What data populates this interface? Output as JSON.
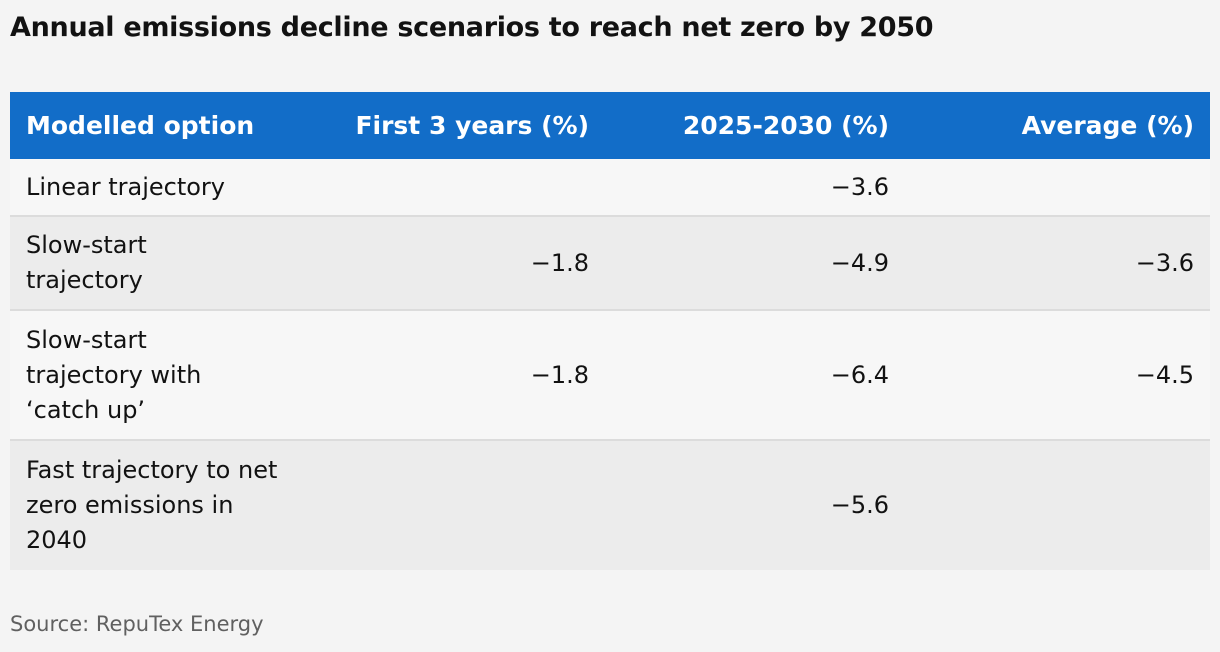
{
  "title": "Annual emissions decline scenarios to reach net zero by 2050",
  "source": "Source: RepuTex Energy",
  "chart_data": {
    "type": "table",
    "columns": [
      "Modelled option",
      "First 3 years (%)",
      "2025-2030 (%)",
      "Average (%)"
    ],
    "rows": [
      {
        "option": "Linear trajectory",
        "first3": "",
        "y2025_2030": "−3.6",
        "average": ""
      },
      {
        "option": "Slow-start trajectory",
        "first3": "−1.8",
        "y2025_2030": "−4.9",
        "average": "−3.6"
      },
      {
        "option": "Slow-start trajectory with ‘catch up’",
        "first3": "−1.8",
        "y2025_2030": "−6.4",
        "average": "−4.5"
      },
      {
        "option": "Fast trajectory to net zero emissions in 2040",
        "first3": "",
        "y2025_2030": "−5.6",
        "average": ""
      }
    ]
  },
  "colors": {
    "header_bg": "#126dc8",
    "header_text": "#ffffff",
    "row_light": "#f7f7f7",
    "row_dark": "#ececec",
    "page_bg": "#f4f4f4"
  }
}
